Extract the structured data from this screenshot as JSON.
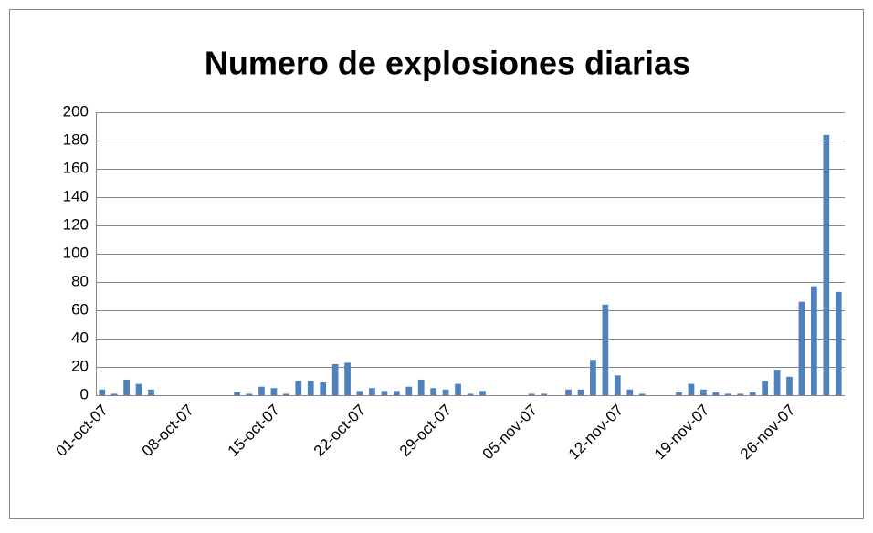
{
  "chart_data": {
    "type": "bar",
    "title": "Numero de explosiones diarias",
    "categories": [
      "01-oct-07",
      null,
      null,
      null,
      null,
      null,
      null,
      "08-oct-07",
      null,
      null,
      null,
      null,
      null,
      null,
      "15-oct-07",
      null,
      null,
      null,
      null,
      null,
      null,
      "22-oct-07",
      null,
      null,
      null,
      null,
      null,
      null,
      "29-oct-07",
      null,
      null,
      null,
      null,
      null,
      null,
      "05-nov-07",
      null,
      null,
      null,
      null,
      null,
      null,
      "12-nov-07",
      null,
      null,
      null,
      null,
      null,
      null,
      "19-nov-07",
      null,
      null,
      null,
      null,
      null,
      null,
      "26-nov-07",
      null,
      null,
      null,
      null
    ],
    "values": [
      4,
      1,
      11,
      8,
      4,
      0,
      0,
      0,
      0,
      0,
      0,
      2,
      1,
      6,
      5,
      1,
      10,
      10,
      9,
      22,
      23,
      3,
      5,
      3,
      3,
      6,
      11,
      5,
      4,
      8,
      1,
      3,
      0,
      0,
      0,
      1,
      1,
      0,
      4,
      4,
      25,
      64,
      14,
      4,
      1,
      0,
      0,
      2,
      8,
      4,
      2,
      1,
      1,
      2,
      10,
      18,
      13,
      66,
      77,
      184,
      73
    ],
    "color": "#4f81bd",
    "ylim": [
      0,
      200
    ],
    "yticks": [
      0,
      20,
      40,
      60,
      80,
      100,
      120,
      140,
      160,
      180,
      200
    ],
    "grid": true
  }
}
